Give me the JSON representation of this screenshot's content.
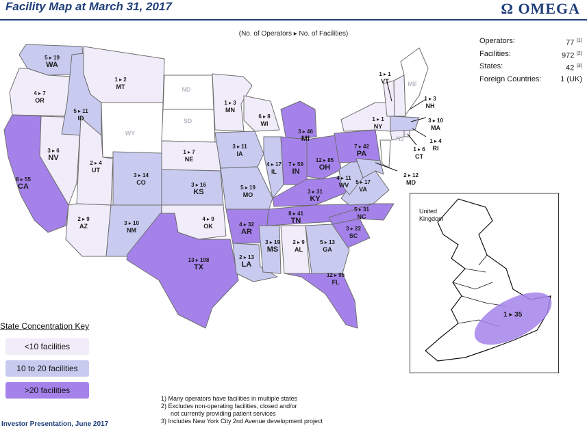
{
  "header": {
    "title": "Facility Map at March 31, 2017",
    "logo_text": "OMEGA",
    "subtitle": "(No. of Operators ▸ No. of Facilities)"
  },
  "stats": {
    "rows": [
      {
        "label": "Operators:",
        "value": "77",
        "note": "(1)"
      },
      {
        "label": "Facilities:",
        "value": "972",
        "note": "(2)"
      },
      {
        "label": "States:",
        "value": "42",
        "note": "(3)"
      },
      {
        "label": "Foreign Countries:",
        "value": "1 (UK)",
        "note": ""
      }
    ]
  },
  "states": [
    {
      "abbr": "WA",
      "counts": "5 ▸ 19",
      "tier": "mid"
    },
    {
      "abbr": "OR",
      "counts": "4 ▸ 7",
      "tier": "low"
    },
    {
      "abbr": "CA",
      "counts": "8 ▸ 55",
      "tier": "high"
    },
    {
      "abbr": "NV",
      "counts": "3 ▸ 6",
      "tier": "low"
    },
    {
      "abbr": "ID",
      "counts": "5 ▸ 11",
      "tier": "mid"
    },
    {
      "abbr": "MT",
      "counts": "1 ▸ 2",
      "tier": "low"
    },
    {
      "abbr": "WY",
      "counts": "",
      "tier": "none"
    },
    {
      "abbr": "UT",
      "counts": "2 ▸ 4",
      "tier": "low"
    },
    {
      "abbr": "AZ",
      "counts": "2 ▸ 9",
      "tier": "low"
    },
    {
      "abbr": "CO",
      "counts": "3 ▸ 14",
      "tier": "mid"
    },
    {
      "abbr": "NM",
      "counts": "3 ▸ 10",
      "tier": "mid"
    },
    {
      "abbr": "ND",
      "counts": "",
      "tier": "none"
    },
    {
      "abbr": "SD",
      "counts": "",
      "tier": "none"
    },
    {
      "abbr": "NE",
      "counts": "1 ▸ 7",
      "tier": "low"
    },
    {
      "abbr": "KS",
      "counts": "3 ▸ 16",
      "tier": "mid"
    },
    {
      "abbr": "OK",
      "counts": "4 ▸ 9",
      "tier": "low"
    },
    {
      "abbr": "TX",
      "counts": "13 ▸ 108",
      "tier": "high"
    },
    {
      "abbr": "MN",
      "counts": "1 ▸ 3",
      "tier": "low"
    },
    {
      "abbr": "IA",
      "counts": "3 ▸ 11",
      "tier": "mid"
    },
    {
      "abbr": "MO",
      "counts": "5 ▸ 19",
      "tier": "mid"
    },
    {
      "abbr": "AR",
      "counts": "4 ▸ 32",
      "tier": "high"
    },
    {
      "abbr": "LA",
      "counts": "2 ▸ 13",
      "tier": "mid"
    },
    {
      "abbr": "WI",
      "counts": "6 ▸ 8",
      "tier": "low"
    },
    {
      "abbr": "IL",
      "counts": "4 ▸ 17",
      "tier": "mid"
    },
    {
      "abbr": "MI",
      "counts": "3 ▸ 46",
      "tier": "high"
    },
    {
      "abbr": "IN",
      "counts": "7 ▸ 59",
      "tier": "high"
    },
    {
      "abbr": "OH",
      "counts": "12 ▸ 85",
      "tier": "high"
    },
    {
      "abbr": "KY",
      "counts": "3 ▸ 31",
      "tier": "high"
    },
    {
      "abbr": "TN",
      "counts": "8 ▸ 41",
      "tier": "high"
    },
    {
      "abbr": "MS",
      "counts": "3 ▸ 19",
      "tier": "mid"
    },
    {
      "abbr": "AL",
      "counts": "2 ▸ 9",
      "tier": "low"
    },
    {
      "abbr": "GA",
      "counts": "5 ▸ 13",
      "tier": "mid"
    },
    {
      "abbr": "FL",
      "counts": "12 ▸ 95",
      "tier": "high"
    },
    {
      "abbr": "SC",
      "counts": "3 ▸ 22",
      "tier": "high"
    },
    {
      "abbr": "NC",
      "counts": "5 ▸ 31",
      "tier": "high"
    },
    {
      "abbr": "VA",
      "counts": "5 ▸ 17",
      "tier": "mid"
    },
    {
      "abbr": "WV",
      "counts": "4 ▸ 11",
      "tier": "mid"
    },
    {
      "abbr": "PA",
      "counts": "7 ▸ 42",
      "tier": "high"
    },
    {
      "abbr": "NY",
      "counts": "1 ▸ 1",
      "tier": "low"
    },
    {
      "abbr": "MD",
      "counts": "2 ▸ 12",
      "tier": "mid"
    },
    {
      "abbr": "NJ",
      "counts": "",
      "tier": "none"
    },
    {
      "abbr": "CT",
      "counts": "1 ▸ 6",
      "tier": "low"
    },
    {
      "abbr": "RI",
      "counts": "1 ▸ 4",
      "tier": "low"
    },
    {
      "abbr": "MA",
      "counts": "3 ▸ 10",
      "tier": "mid"
    },
    {
      "abbr": "VT",
      "counts": "1 ▸ 1",
      "tier": "low"
    },
    {
      "abbr": "NH",
      "counts": "1 ▸ 3",
      "tier": "low"
    },
    {
      "abbr": "ME",
      "counts": "",
      "tier": "none"
    }
  ],
  "uk": {
    "label": "United Kingdom",
    "counts": "1 ▸ 35",
    "tier": "high"
  },
  "key": {
    "title": "State Concentration Key",
    "items": [
      {
        "label": "<10 facilities",
        "tier": "low"
      },
      {
        "label": "10 to 20 facilities",
        "tier": "mid"
      },
      {
        "label": ">20 facilities",
        "tier": "high"
      }
    ]
  },
  "colors": {
    "low": "#f1ecf9",
    "mid": "#c8cbef",
    "high": "#a582ea",
    "none": "#ffffff",
    "brand": "#1f3f7a"
  },
  "footnotes": [
    "1)  Many operators have facilities in multiple states",
    "2)  Excludes non-operating facilities, closed and/or",
    "not currently providing patient services",
    "3)  Includes New York City 2nd Avenue development project"
  ],
  "footer": "Investor Presentation, June 2017"
}
